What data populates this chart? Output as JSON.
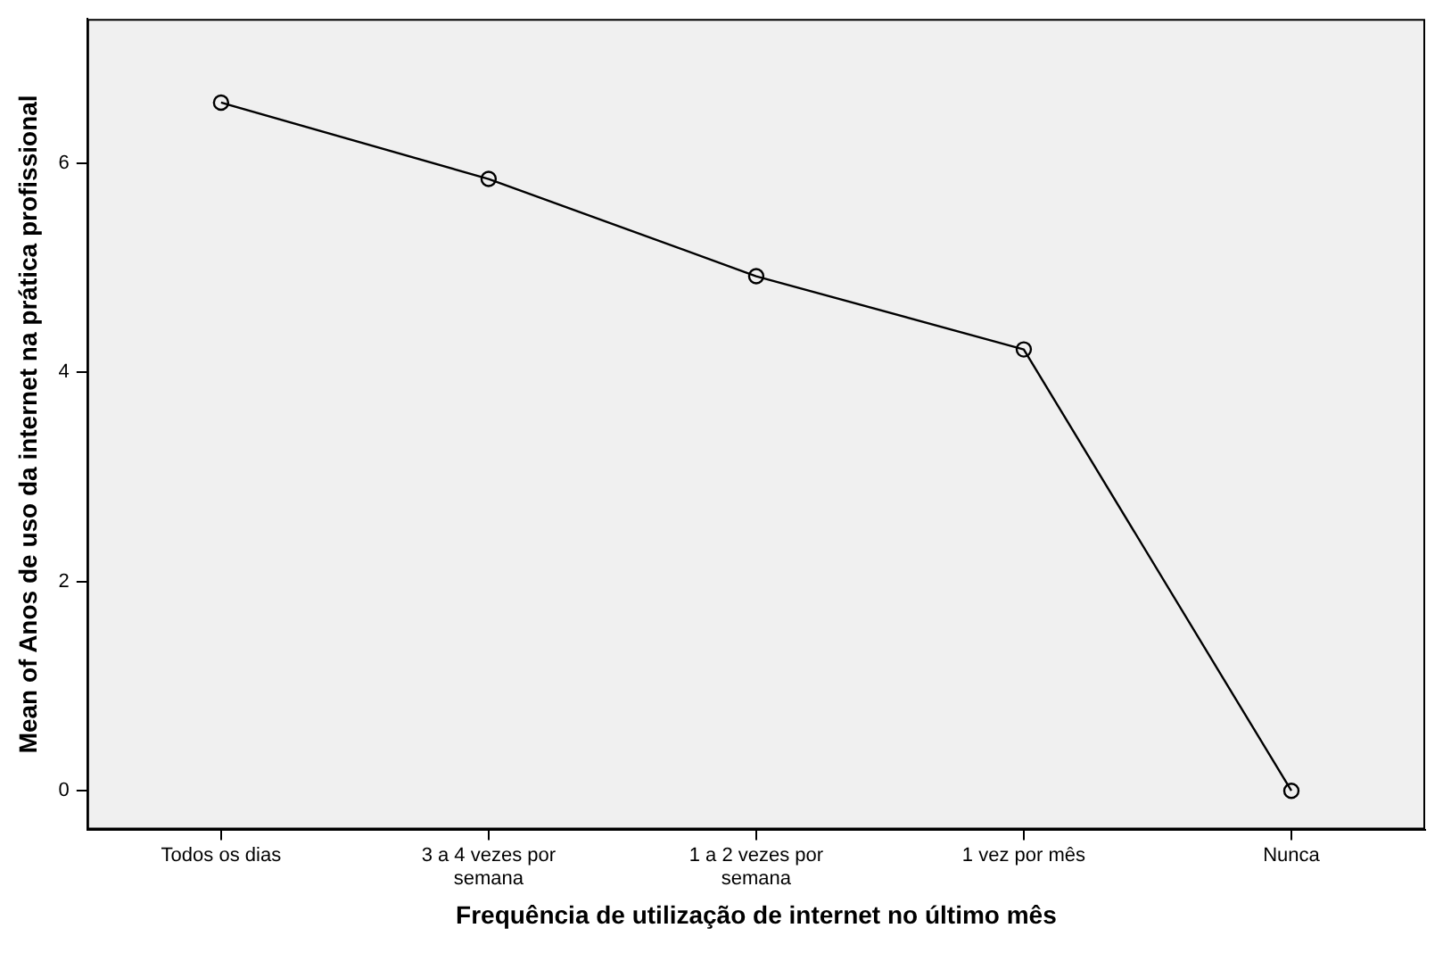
{
  "chart_data": {
    "type": "line",
    "xlabel": "Frequência de utilização de internet no último mês",
    "ylabel": "Mean of Anos de uso da internet na prática profissional",
    "categories": [
      "Todos os dias",
      "3 a 4 vezes por semana",
      "1 a 2 vezes por semana",
      "1 vez por mês",
      "Nunca"
    ],
    "series": [
      {
        "color": "#000000",
        "values": [
          6.58,
          5.85,
          4.92,
          4.22,
          0
        ]
      }
    ],
    "ylim": [
      -0.37,
      7.38
    ],
    "yticks": [
      0,
      2,
      4,
      6
    ],
    "grid": false,
    "legend": false,
    "marker": "circle",
    "line_style": "solid"
  }
}
